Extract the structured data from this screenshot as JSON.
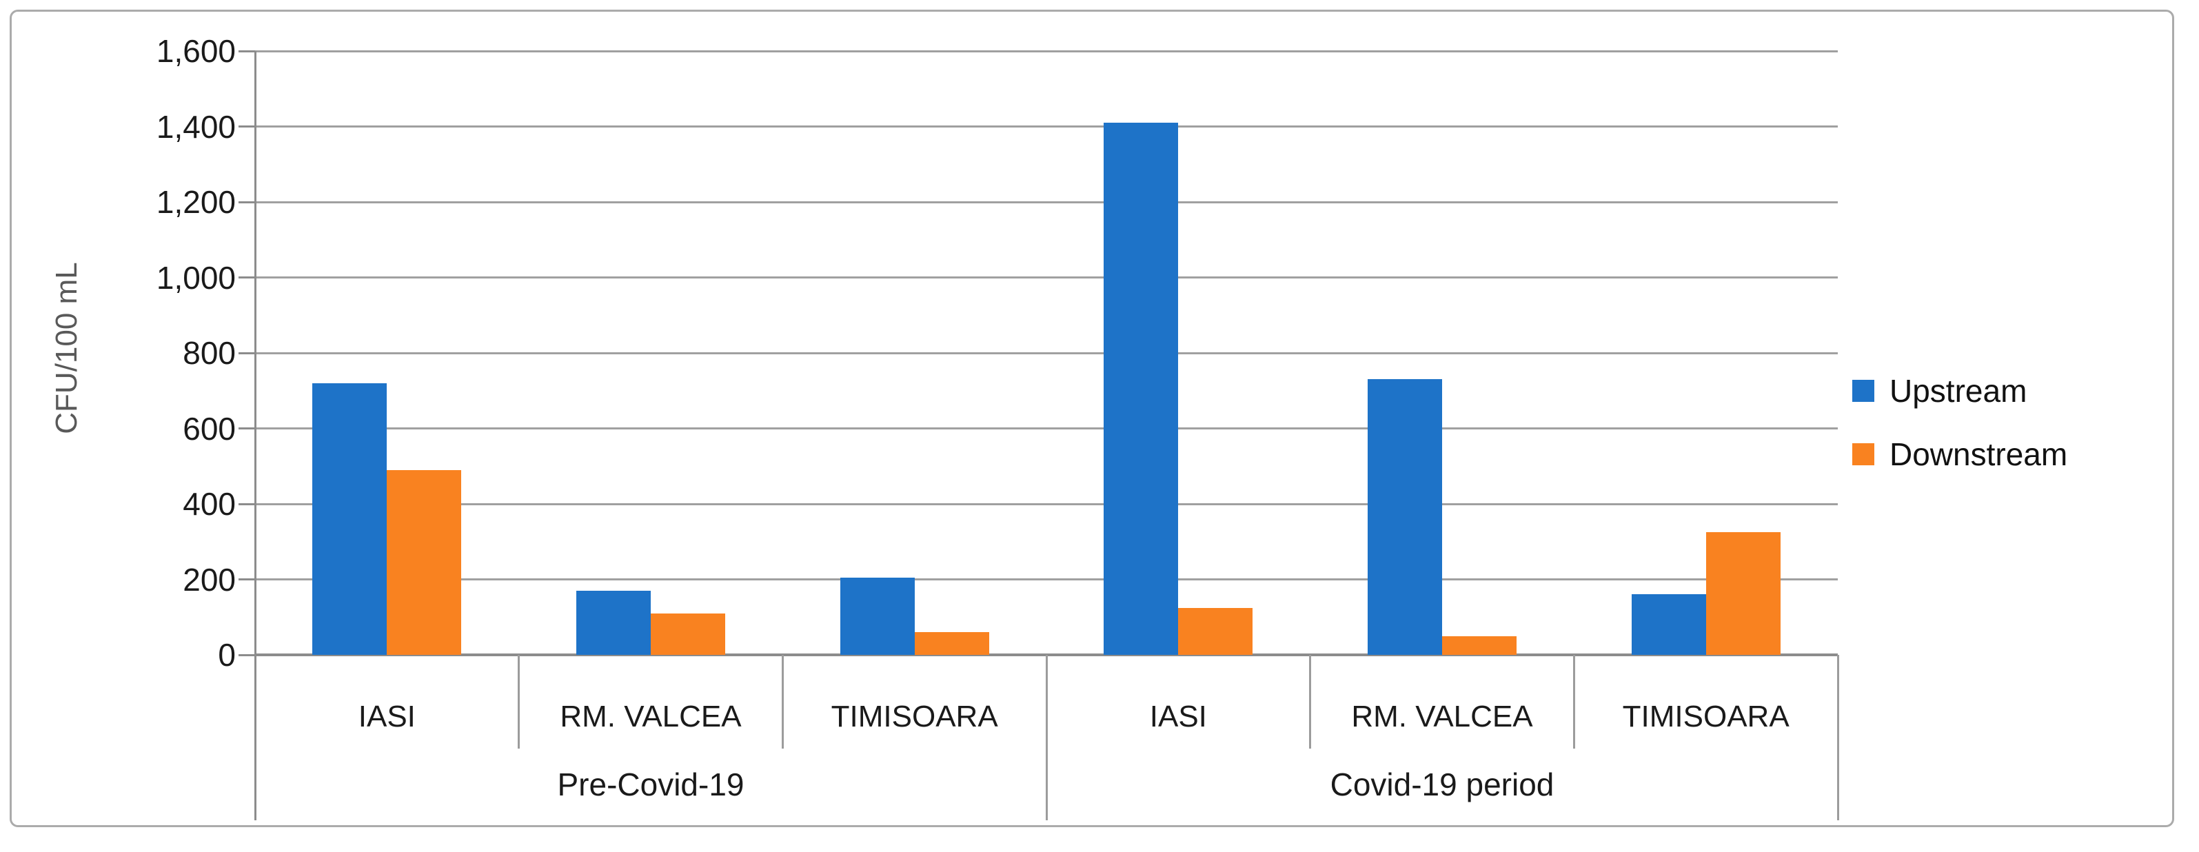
{
  "figure": {
    "kind": "grouped-bar-chart-figure"
  },
  "chart_data": {
    "type": "bar",
    "title": "",
    "xlabel": "",
    "ylabel": "CFU/100 mL",
    "ylim": [
      0,
      1600
    ],
    "ytick_step": 200,
    "ytick_labels": [
      "0",
      "200",
      "400",
      "600",
      "800",
      "1,000",
      "1,200",
      "1,400",
      "1,600"
    ],
    "grid": true,
    "legend_position": "right",
    "groups": [
      {
        "label": "Pre-Covid-19",
        "categories": [
          "IASI",
          "RM. VALCEA",
          "TIMISOARA"
        ]
      },
      {
        "label": "Covid-19 period",
        "categories": [
          "IASI",
          "RM. VALCEA",
          "TIMISOARA"
        ]
      }
    ],
    "series": [
      {
        "name": "Upstream",
        "color": "#1E73C8",
        "values": [
          720,
          170,
          205,
          1410,
          730,
          160
        ]
      },
      {
        "name": "Downstream",
        "color": "#F98220",
        "values": [
          490,
          110,
          60,
          125,
          50,
          325
        ]
      }
    ]
  }
}
